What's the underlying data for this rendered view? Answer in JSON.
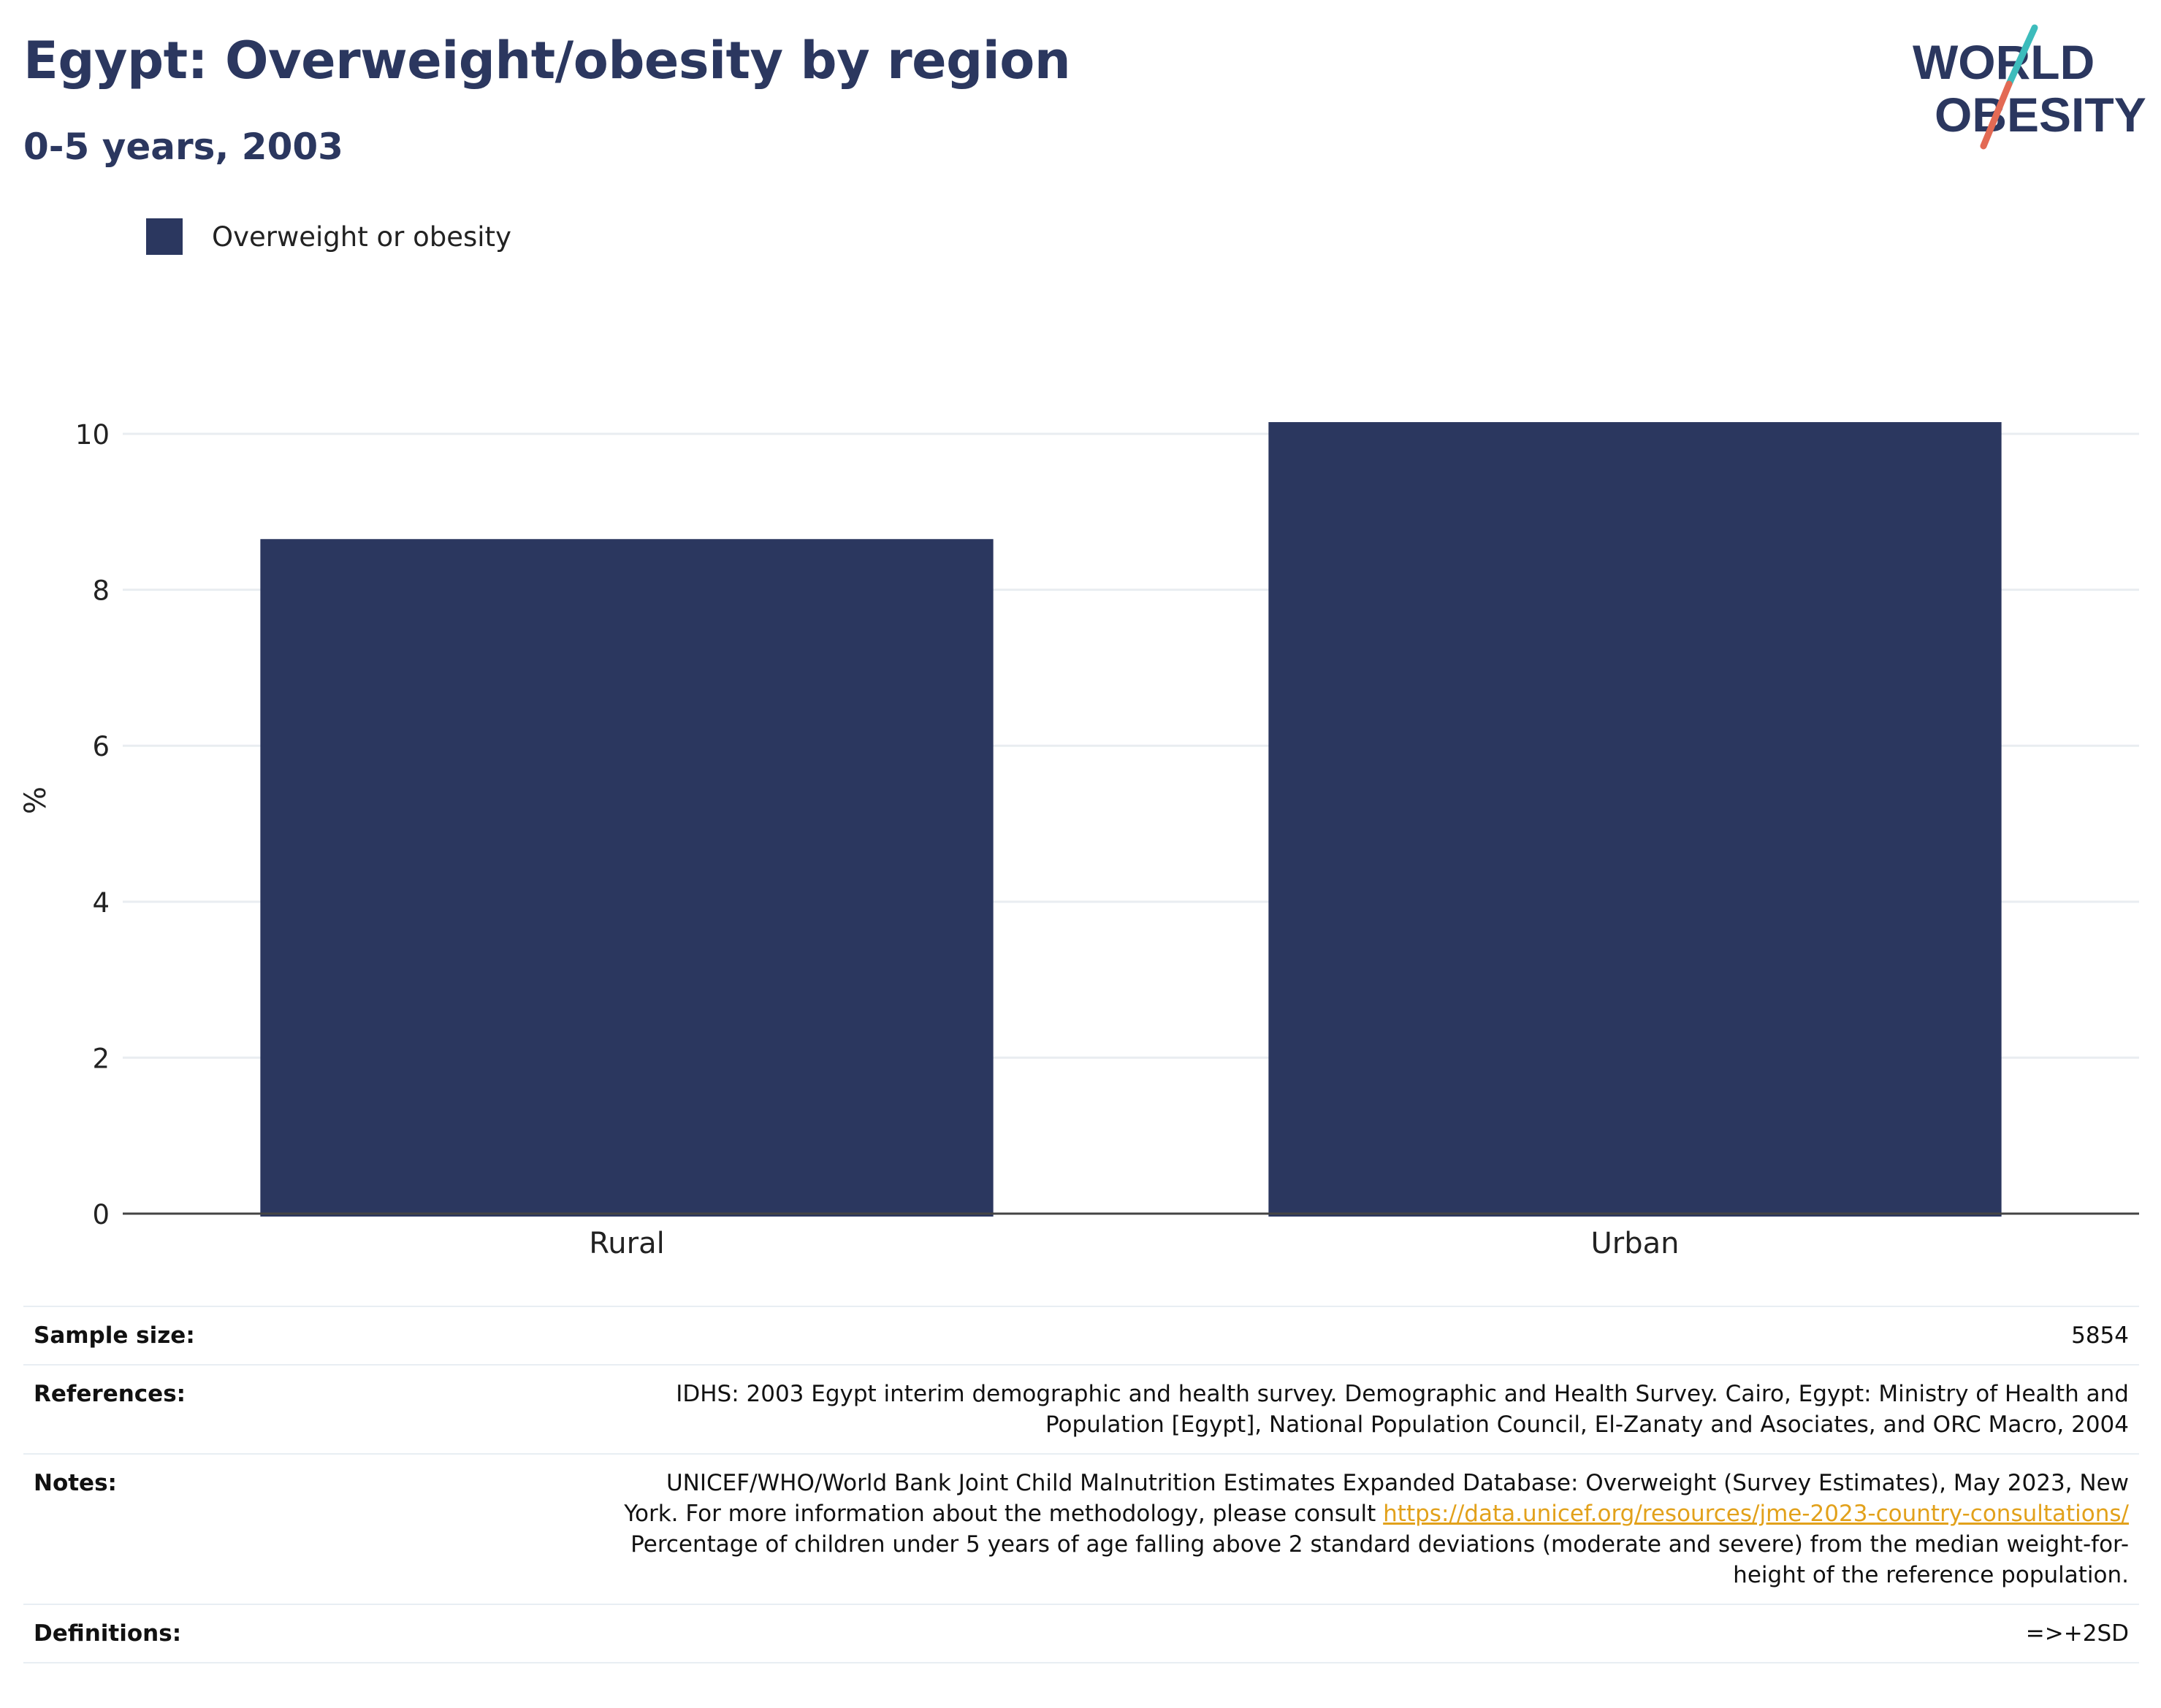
{
  "header": {
    "title": "Egypt: Overweight/obesity by region",
    "subtitle": "0-5 years, 2003"
  },
  "logo": {
    "line1": "WORLD",
    "line2": "OBESITY",
    "text_color": "#2b375f",
    "slash_top_color": "#3dbcbc",
    "slash_bottom_color": "#e36a54"
  },
  "legend": {
    "label": "Overweight or obesity",
    "color": "#2b375f"
  },
  "chart_data": {
    "type": "bar",
    "categories": [
      "Rural",
      "Urban"
    ],
    "series": [
      {
        "name": "Overweight or obesity",
        "values": [
          8.65,
          10.15
        ],
        "color": "#2b375f"
      }
    ],
    "ylabel": "%",
    "xlabel": "",
    "ylim": [
      0,
      10.6
    ],
    "yticks": [
      0,
      2,
      4,
      6,
      8,
      10
    ],
    "grid": true,
    "legend_position": "top-left"
  },
  "info": {
    "sample_size_label": "Sample size:",
    "sample_size_value": "5854",
    "references_label": "References:",
    "references_line1": "IDHS: 2003 Egypt interim demographic and health survey. Demographic and Health Survey. Cairo, Egypt: Ministry of Health and",
    "references_line2": "Population [Egypt], National Population Council, El-Zanaty and Asociates, and ORC Macro, 2004",
    "notes_label": "Notes:",
    "notes_line1": "UNICEF/WHO/World Bank Joint Child Malnutrition Estimates Expanded Database: Overweight (Survey Estimates), May 2023, New",
    "notes_line2_prefix": "York. For more information about the methodology, please consult ",
    "notes_link": "https://data.unicef.org/resources/jme-2023-country-consultations/",
    "notes_line3": "Percentage of children under 5 years of age falling above 2 standard deviations (moderate and severe) from the median weight-for-",
    "notes_line4": "height of the reference population.",
    "definitions_label": "Definitions:",
    "definitions_value": "=>+2SD"
  }
}
